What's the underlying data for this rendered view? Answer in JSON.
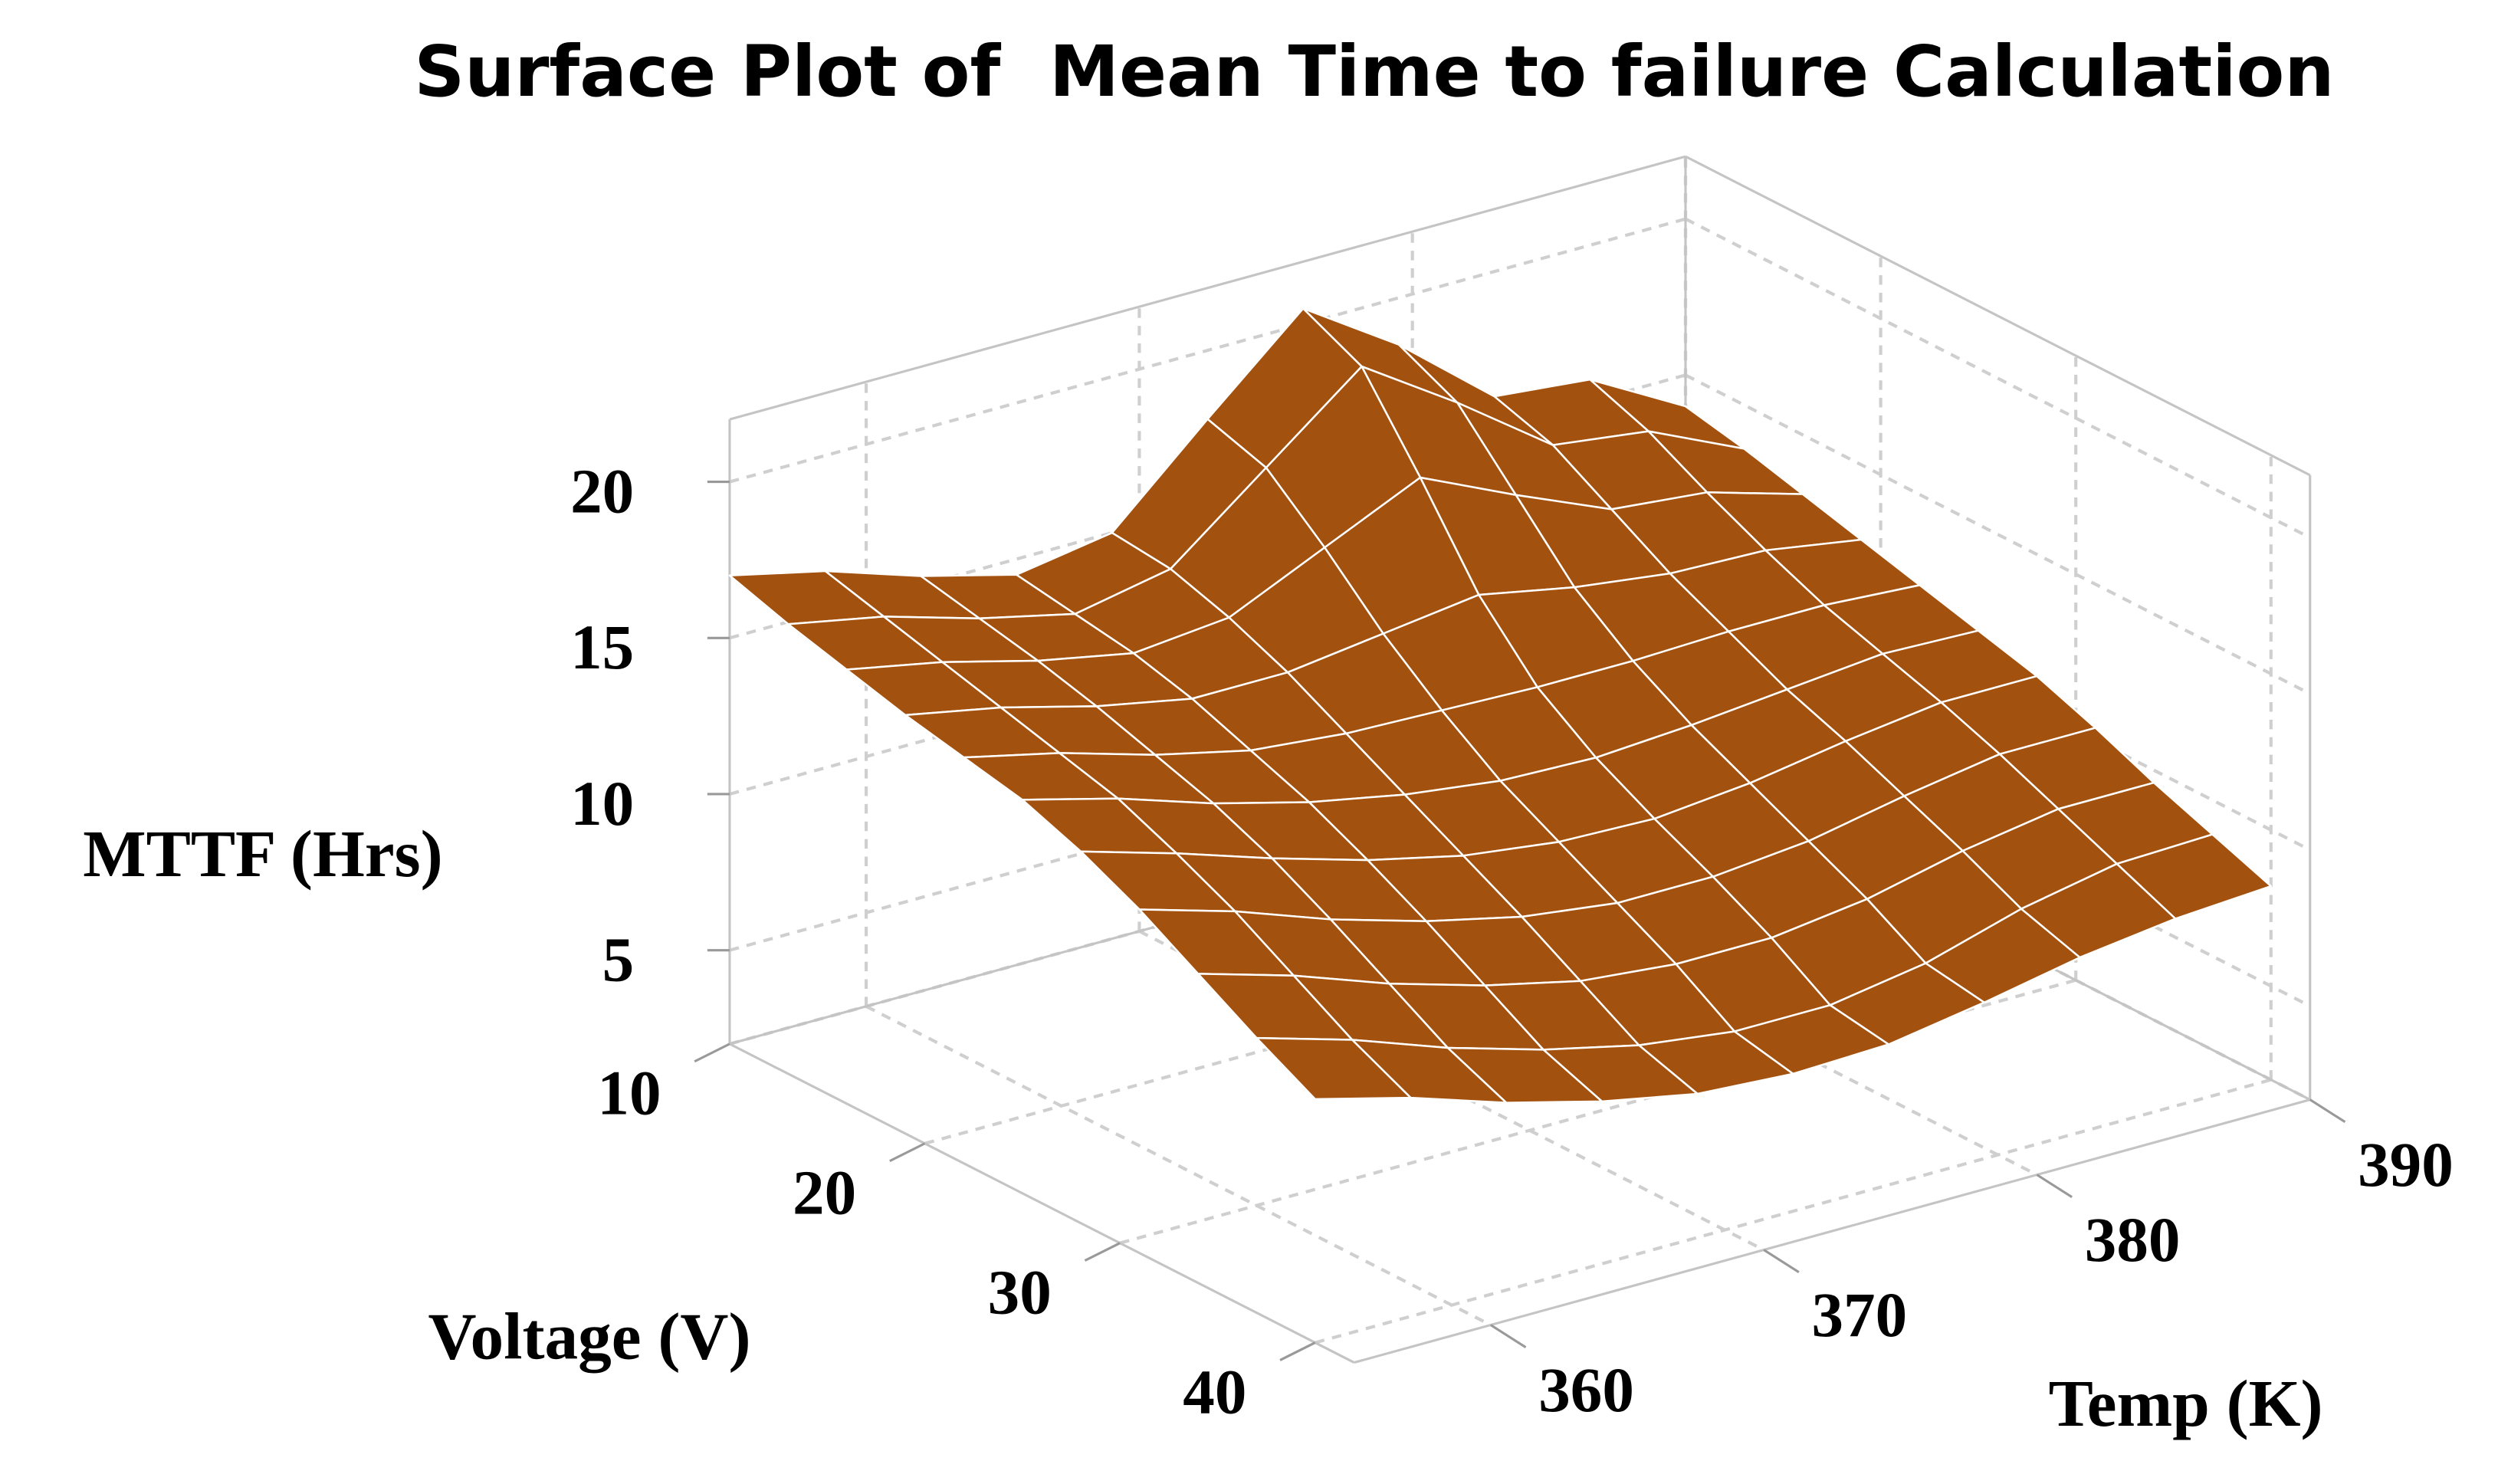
{
  "chart_data": {
    "type": "surface",
    "title": "Surface Plot of  Mean Time to failure Calculation",
    "x_label": "Voltage (V)",
    "y_label": "Temp (K)",
    "z_label": "MTTF (Hrs)",
    "color": "#a3510f",
    "grid": true,
    "xlim": [
      10,
      42
    ],
    "ylim": [
      355,
      390
    ],
    "zlim": [
      2,
      22
    ],
    "xticks": [
      10,
      20,
      30,
      40
    ],
    "yticks": [
      360,
      370,
      380,
      390
    ],
    "zticks": [
      5,
      10,
      15,
      20
    ],
    "x": [
      10,
      13,
      16,
      19,
      22,
      25,
      28,
      31,
      34,
      37,
      40
    ],
    "y": [
      355,
      358.5,
      362,
      365.5,
      369,
      372.5,
      376,
      379.5,
      383,
      386.5,
      390
    ],
    "z": [
      [
        17.0,
        16.3,
        15.3,
        14.5,
        15.0,
        17.8,
        20.5,
        18.5,
        16.0,
        15.7,
        14.0
      ],
      [
        16.4,
        15.8,
        14.9,
        14.2,
        14.8,
        17.2,
        19.6,
        17.6,
        15.4,
        15.0,
        13.6
      ],
      [
        15.9,
        15.3,
        14.5,
        13.9,
        14.2,
        15.6,
        17.0,
        15.6,
        14.3,
        14.0,
        13.1
      ],
      [
        15.4,
        14.8,
        14.0,
        13.4,
        13.4,
        13.8,
        14.2,
        13.6,
        13.2,
        13.1,
        12.6
      ],
      [
        15.0,
        14.3,
        13.4,
        12.7,
        12.4,
        12.3,
        12.2,
        12.2,
        12.3,
        12.3,
        12.1
      ],
      [
        14.6,
        13.8,
        12.8,
        12.0,
        11.4,
        11.0,
        10.9,
        11.1,
        11.4,
        11.7,
        11.6
      ],
      [
        13.9,
        13.0,
        12.0,
        11.1,
        10.4,
        10.0,
        9.9,
        10.2,
        10.7,
        11.1,
        11.1
      ],
      [
        13.0,
        12.1,
        11.0,
        10.1,
        9.4,
        9.0,
        9.0,
        9.3,
        9.9,
        10.4,
        10.4
      ],
      [
        11.9,
        11.0,
        9.9,
        9.0,
        8.3,
        8.0,
        8.0,
        8.4,
        9.1,
        9.6,
        9.6
      ],
      [
        10.8,
        9.9,
        8.8,
        7.9,
        7.2,
        6.8,
        6.8,
        7.3,
        8.2,
        8.8,
        8.9
      ],
      [
        9.8,
        9.0,
        8.0,
        7.2,
        6.6,
        6.4,
        6.5,
        7.0,
        7.6,
        8.0,
        8.2
      ]
    ]
  }
}
